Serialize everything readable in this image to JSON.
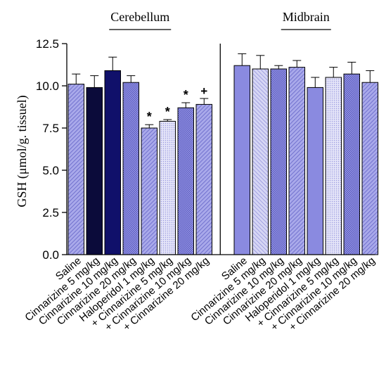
{
  "chart_data": {
    "type": "bar",
    "ylabel": "GSH (μmol/g. tissuel)",
    "ylim": [
      0,
      12.5
    ],
    "yticks": [
      "0.0",
      "2.5",
      "5.0",
      "7.5",
      "10.0",
      "12.5"
    ],
    "groups": [
      {
        "label": "Cerebellum",
        "categories": [
          "Saline",
          "Cinnarizine 5 mg/kg",
          "Cinnarizine 10 mg/kg",
          "Cinnarizine 20 mg/kg",
          "Haloperidol 1 mg/kg",
          "+ Cinnarizine 5 mg/kg",
          "+ Cinnarizine 10 mg/kg",
          "+ Cinnarizine 20 mg/kg"
        ],
        "values": [
          10.1,
          9.9,
          10.9,
          10.2,
          7.5,
          7.9,
          8.7,
          8.9
        ],
        "errors": [
          0.6,
          0.7,
          0.8,
          0.4,
          0.2,
          0.1,
          0.3,
          0.35
        ],
        "markers": [
          "",
          "",
          "",
          "",
          "*",
          "*",
          "*",
          "+"
        ],
        "fills": [
          "hatch",
          "dark",
          "navy",
          "check",
          "hatch",
          "fine",
          "check",
          "hatch"
        ]
      },
      {
        "label": "Midbrain",
        "categories": [
          "Saline",
          "Cinnarizine 5 mg/kg",
          "Cinnarizine 10 mg/kg",
          "Cinnarizine 20 mg/kg",
          "Haloperidol 1 mg/kg",
          "+ Cinnarizine 5 mg/kg",
          "+ Cinnarizine 10 mg/kg",
          "+ Cinnarizine 20 mg/kg"
        ],
        "values": [
          11.2,
          11.0,
          11.0,
          11.1,
          9.9,
          10.5,
          10.7,
          10.2
        ],
        "errors": [
          0.7,
          0.8,
          0.2,
          0.4,
          0.6,
          0.6,
          0.7,
          0.7
        ],
        "markers": [
          "",
          "",
          "",
          "",
          "",
          "",
          "",
          ""
        ],
        "fills": [
          "solid",
          "diag",
          "check",
          "hatch",
          "solid",
          "fine",
          "check",
          "hatch"
        ]
      }
    ],
    "colors": {
      "base": "#8a8ae0",
      "light": "#c8c8f0",
      "dark": "#0b0b3a",
      "navy": "#10106a",
      "line": "#000000"
    }
  }
}
